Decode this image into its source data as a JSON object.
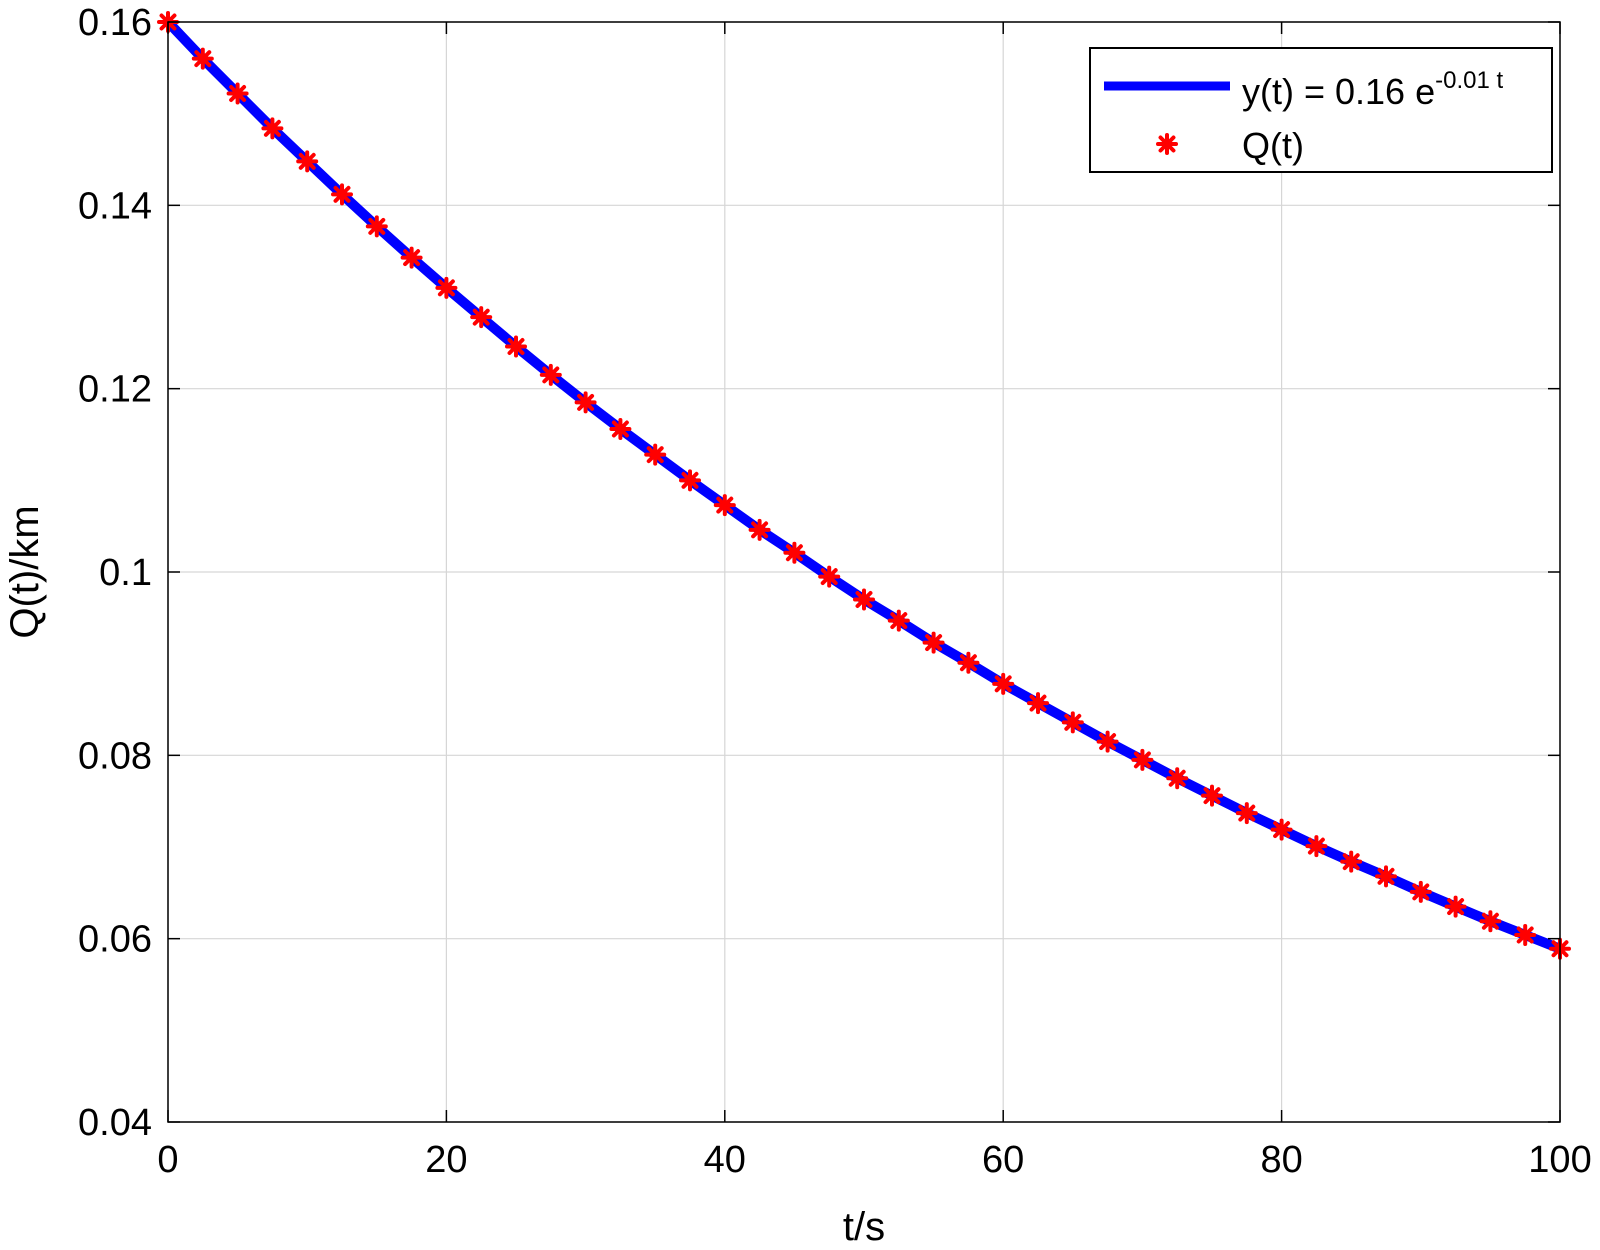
{
  "chart_data": {
    "type": "line",
    "title": "",
    "xlabel": "t/s",
    "ylabel": "Q(t)/km",
    "xlim": [
      0,
      100
    ],
    "ylim": [
      0.04,
      0.16
    ],
    "xticks": [
      0,
      20,
      40,
      60,
      80,
      100
    ],
    "xtick_labels": [
      "0",
      "20",
      "40",
      "60",
      "80",
      "100"
    ],
    "yticks": [
      0.04,
      0.06,
      0.08,
      0.1,
      0.12,
      0.14,
      0.16
    ],
    "ytick_labels": [
      "0.04",
      "0.06",
      "0.08",
      "0.1",
      "0.12",
      "0.14",
      "0.16"
    ],
    "grid": true,
    "legend_position": "top-right",
    "series": [
      {
        "name": "y(t) = 0.16 e-0.01 t",
        "name_base": "y(t) = 0.16 e",
        "name_exponent": "-0.01 t",
        "style": "line",
        "color": "#0000ff",
        "x": [
          0,
          2.5,
          5,
          7.5,
          10,
          12.5,
          15,
          17.5,
          20,
          22.5,
          25,
          27.5,
          30,
          32.5,
          35,
          37.5,
          40,
          42.5,
          45,
          47.5,
          50,
          52.5,
          55,
          57.5,
          60,
          62.5,
          65,
          67.5,
          70,
          72.5,
          75,
          77.5,
          80,
          82.5,
          85,
          87.5,
          90,
          92.5,
          95,
          97.5,
          100
        ],
        "y": [
          0.16,
          0.156,
          0.1522,
          0.1484,
          0.1448,
          0.1412,
          0.1377,
          0.1343,
          0.131,
          0.1278,
          0.1246,
          0.1215,
          0.1185,
          0.1156,
          0.1128,
          0.11,
          0.1073,
          0.1046,
          0.1021,
          0.0995,
          0.097,
          0.0947,
          0.0923,
          0.0901,
          0.0878,
          0.0857,
          0.0836,
          0.0815,
          0.0795,
          0.0775,
          0.0756,
          0.0737,
          0.0719,
          0.0701,
          0.0684,
          0.0668,
          0.0651,
          0.0635,
          0.0619,
          0.0604,
          0.0589
        ]
      },
      {
        "name": "Q(t)",
        "style": "markers",
        "marker": "asterisk",
        "color": "#ff0000",
        "x": [
          0,
          2.5,
          5,
          7.5,
          10,
          12.5,
          15,
          17.5,
          20,
          22.5,
          25,
          27.5,
          30,
          32.5,
          35,
          37.5,
          40,
          42.5,
          45,
          47.5,
          50,
          52.5,
          55,
          57.5,
          60,
          62.5,
          65,
          67.5,
          70,
          72.5,
          75,
          77.5,
          80,
          82.5,
          85,
          87.5,
          90,
          92.5,
          95,
          97.5,
          100
        ],
        "y": [
          0.16,
          0.156,
          0.1522,
          0.1484,
          0.1448,
          0.1412,
          0.1377,
          0.1343,
          0.131,
          0.1278,
          0.1246,
          0.1215,
          0.1185,
          0.1156,
          0.1128,
          0.11,
          0.1073,
          0.1046,
          0.1021,
          0.0995,
          0.097,
          0.0947,
          0.0923,
          0.0901,
          0.0878,
          0.0857,
          0.0836,
          0.0815,
          0.0795,
          0.0775,
          0.0756,
          0.0737,
          0.0719,
          0.0701,
          0.0684,
          0.0668,
          0.0651,
          0.0635,
          0.0619,
          0.0604,
          0.0589
        ]
      }
    ]
  }
}
